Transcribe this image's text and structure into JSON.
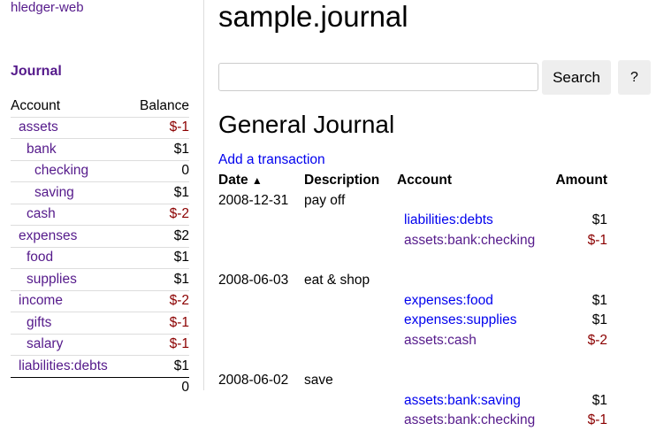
{
  "sidebar": {
    "brand": "hledger-web",
    "journal_link": "Journal",
    "headers": {
      "account": "Account",
      "balance": "Balance"
    },
    "accounts": [
      {
        "name": "assets",
        "balance": "$-1",
        "depth": 0,
        "negative": true
      },
      {
        "name": "bank",
        "balance": "$1",
        "depth": 1,
        "negative": false
      },
      {
        "name": "checking",
        "balance": "0",
        "depth": 2,
        "negative": false
      },
      {
        "name": "saving",
        "balance": "$1",
        "depth": 2,
        "negative": false
      },
      {
        "name": "cash",
        "balance": "$-2",
        "depth": 1,
        "negative": true
      },
      {
        "name": "expenses",
        "balance": "$2",
        "depth": 0,
        "negative": false
      },
      {
        "name": "food",
        "balance": "$1",
        "depth": 1,
        "negative": false
      },
      {
        "name": "supplies",
        "balance": "$1",
        "depth": 1,
        "negative": false
      },
      {
        "name": "income",
        "balance": "$-2",
        "depth": 0,
        "negative": true
      },
      {
        "name": "gifts",
        "balance": "$-1",
        "depth": 1,
        "negative": true
      },
      {
        "name": "salary",
        "balance": "$-1",
        "depth": 1,
        "negative": true
      },
      {
        "name": "liabilities:debts",
        "balance": "$1",
        "depth": 0,
        "negative": false
      }
    ],
    "total": "0"
  },
  "main": {
    "title": "sample.journal",
    "search": {
      "value": "",
      "placeholder": "",
      "button": "Search",
      "help": "?"
    },
    "heading": "General Journal",
    "add_link": "Add a transaction",
    "columns": {
      "date": "Date",
      "sort_icon": "chevron-up-icon",
      "description": "Description",
      "account": "Account",
      "amount": "Amount"
    },
    "transactions": [
      {
        "date": "2008-12-31",
        "description": "pay off",
        "postings": [
          {
            "account": "liabilities:debts",
            "amount": "$1",
            "visited": false,
            "negative": false
          },
          {
            "account": "assets:bank:checking",
            "amount": "$-1",
            "visited": true,
            "negative": true
          }
        ]
      },
      {
        "date": "2008-06-03",
        "description": "eat & shop",
        "postings": [
          {
            "account": "expenses:food",
            "amount": "$1",
            "visited": false,
            "negative": false
          },
          {
            "account": "expenses:supplies",
            "amount": "$1",
            "visited": false,
            "negative": false
          },
          {
            "account": "assets:cash",
            "amount": "$-2",
            "visited": true,
            "negative": true
          }
        ]
      },
      {
        "date": "2008-06-02",
        "description": "save",
        "postings": [
          {
            "account": "assets:bank:saving",
            "amount": "$1",
            "visited": false,
            "negative": false
          },
          {
            "account": "assets:bank:checking",
            "amount": "$-1",
            "visited": true,
            "negative": true
          }
        ]
      }
    ]
  }
}
